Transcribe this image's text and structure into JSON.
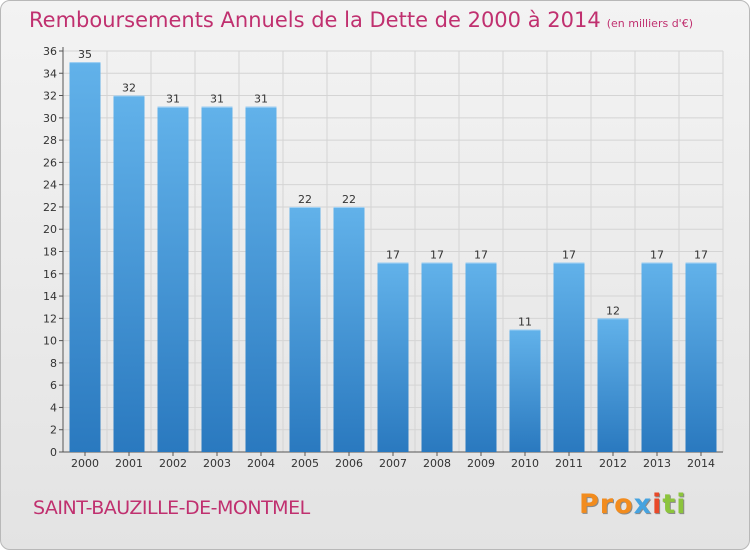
{
  "header": {
    "title": "Remboursements Annuels de la Dette de 2000 à 2014",
    "unit": "(en milliers d'€)"
  },
  "footer": {
    "commune": "SAINT-BAUZILLE-DE-MONTMEL",
    "logo": [
      "Pro",
      "x",
      "i",
      "ti"
    ]
  },
  "colors": {
    "title": "#c0306f",
    "bar_light": "#62b2ea",
    "bar_dark": "#2a79bf",
    "grid": "#d4d4d4"
  },
  "chart_data": {
    "type": "bar",
    "title": "Remboursements Annuels de la Dette de 2000 à 2014",
    "xlabel": "",
    "ylabel": "",
    "categories": [
      "2000",
      "2001",
      "2002",
      "2003",
      "2004",
      "2005",
      "2006",
      "2007",
      "2008",
      "2009",
      "2010",
      "2011",
      "2012",
      "2013",
      "2014"
    ],
    "values": [
      35,
      32,
      31,
      31,
      31,
      22,
      22,
      17,
      17,
      17,
      11,
      17,
      12,
      17,
      17
    ],
    "ylim": [
      0,
      36
    ],
    "yticks": [
      0,
      2,
      4,
      6,
      8,
      10,
      12,
      14,
      16,
      18,
      20,
      22,
      24,
      26,
      28,
      30,
      32,
      34,
      36
    ],
    "grid": true,
    "data_labels": true
  }
}
